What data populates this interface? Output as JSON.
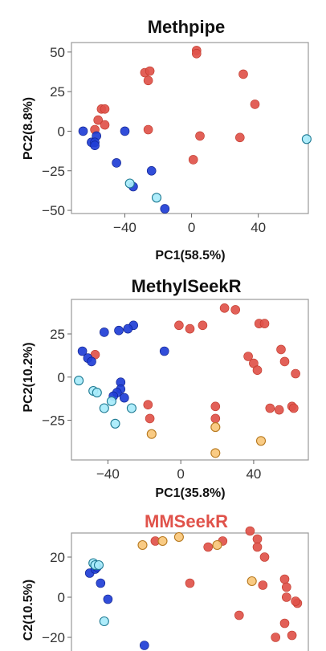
{
  "colors": {
    "red": "#e0524a",
    "blue": "#1f3ed6",
    "cyan": "#a8ecfb",
    "orange": "#f9c779",
    "panel_border": "#999999"
  },
  "chart_data": [
    {
      "type": "scatter",
      "title": "Methpipe",
      "xlabel": "PC1(58.5%)",
      "ylabel": "PC2(8.8%)",
      "xlim": [
        -72,
        70
      ],
      "ylim": [
        -52,
        56
      ],
      "xticks": [
        -40,
        0,
        40
      ],
      "yticks": [
        50,
        25,
        0,
        -25,
        -50
      ],
      "grid": false,
      "series": [
        {
          "group": "red",
          "points": [
            [
              3,
              51
            ],
            [
              3,
              49
            ],
            [
              -28,
              37
            ],
            [
              -25,
              38
            ],
            [
              -26,
              32
            ],
            [
              31,
              36
            ],
            [
              38,
              17
            ],
            [
              -54,
              14
            ],
            [
              -52,
              14
            ],
            [
              -56,
              7
            ],
            [
              -52,
              4
            ],
            [
              -58,
              1
            ],
            [
              -26,
              1
            ],
            [
              5,
              -3
            ],
            [
              29,
              -4
            ],
            [
              1,
              -18
            ]
          ]
        },
        {
          "group": "blue",
          "points": [
            [
              -65,
              0
            ],
            [
              -57,
              -3
            ],
            [
              -60,
              -7
            ],
            [
              -58,
              -7
            ],
            [
              -58,
              -9
            ],
            [
              -40,
              0
            ],
            [
              -45,
              -20
            ],
            [
              -35,
              -35
            ],
            [
              -24,
              -25
            ],
            [
              -16,
              -49
            ]
          ]
        },
        {
          "group": "cyan",
          "points": [
            [
              -37,
              -33
            ],
            [
              -21,
              -42
            ],
            [
              69,
              -5
            ]
          ]
        }
      ]
    },
    {
      "type": "scatter",
      "title": "MethylSeekR",
      "xlabel": "PC1(35.8%)",
      "ylabel": "PC2(10.2%)",
      "xlim": [
        -60,
        70
      ],
      "ylim": [
        -48,
        45
      ],
      "xticks": [
        -40,
        0,
        40
      ],
      "yticks": [
        25,
        0,
        -25
      ],
      "grid": false,
      "series": [
        {
          "group": "red",
          "points": [
            [
              -1,
              30
            ],
            [
              5,
              28
            ],
            [
              12,
              30
            ],
            [
              24,
              40
            ],
            [
              30,
              39
            ],
            [
              43,
              31
            ],
            [
              46,
              31
            ],
            [
              -47,
              13
            ],
            [
              37,
              12
            ],
            [
              40,
              8
            ],
            [
              42,
              4
            ],
            [
              55,
              16
            ],
            [
              57,
              9
            ],
            [
              63,
              2
            ],
            [
              19,
              -17
            ],
            [
              -18,
              -16
            ],
            [
              -17,
              -24
            ],
            [
              49,
              -18
            ],
            [
              54,
              -19
            ],
            [
              61,
              -17
            ],
            [
              62,
              -18
            ],
            [
              19,
              -24
            ]
          ]
        },
        {
          "group": "blue",
          "points": [
            [
              -26,
              30
            ],
            [
              -29,
              28
            ],
            [
              -34,
              27
            ],
            [
              -42,
              26
            ],
            [
              -54,
              15
            ],
            [
              -51,
              11
            ],
            [
              -49,
              9
            ],
            [
              -9,
              15
            ],
            [
              -33,
              -3
            ],
            [
              -33,
              -7
            ],
            [
              -35,
              -9
            ],
            [
              -37,
              -11
            ],
            [
              -31,
              -12
            ]
          ]
        },
        {
          "group": "cyan",
          "points": [
            [
              -56,
              -2
            ],
            [
              -48,
              -8
            ],
            [
              -46,
              -9
            ],
            [
              -42,
              -18
            ],
            [
              -38,
              -14
            ],
            [
              -36,
              -27
            ],
            [
              -27,
              -18
            ]
          ]
        },
        {
          "group": "orange",
          "points": [
            [
              -16,
              -33
            ],
            [
              19,
              -29
            ],
            [
              44,
              -37
            ],
            [
              19,
              -44
            ]
          ]
        }
      ]
    },
    {
      "type": "scatter",
      "title": "MMSeekR",
      "xlabel": "",
      "ylabel": "C2(10.5%)",
      "xlim": [
        -60,
        70
      ],
      "ylim": [
        -32,
        32
      ],
      "yticks": [
        20,
        0,
        -20
      ],
      "grid": false,
      "series": [
        {
          "group": "red",
          "points": [
            [
              -14,
              28
            ],
            [
              15,
              25
            ],
            [
              23,
              28
            ],
            [
              38,
              33
            ],
            [
              42,
              29
            ],
            [
              42,
              25
            ],
            [
              46,
              20
            ],
            [
              5,
              7
            ],
            [
              45,
              6
            ],
            [
              57,
              9
            ],
            [
              58,
              5
            ],
            [
              58,
              0
            ],
            [
              64,
              -3
            ],
            [
              63,
              -2
            ],
            [
              32,
              -9
            ],
            [
              52,
              -20
            ],
            [
              61,
              -19
            ],
            [
              57,
              -13
            ]
          ]
        },
        {
          "group": "blue",
          "points": [
            [
              -50,
              12
            ],
            [
              -47,
              14
            ],
            [
              -46,
              15
            ],
            [
              -44,
              7
            ],
            [
              -40,
              -1
            ],
            [
              -20,
              -24
            ]
          ]
        },
        {
          "group": "cyan",
          "points": [
            [
              -48,
              17
            ],
            [
              -47,
              16
            ],
            [
              -45,
              16
            ],
            [
              -42,
              -12
            ]
          ]
        },
        {
          "group": "orange",
          "points": [
            [
              -21,
              26
            ],
            [
              -10,
              28
            ],
            [
              -1,
              30
            ],
            [
              20,
              26
            ],
            [
              39,
              8
            ]
          ]
        }
      ]
    }
  ]
}
